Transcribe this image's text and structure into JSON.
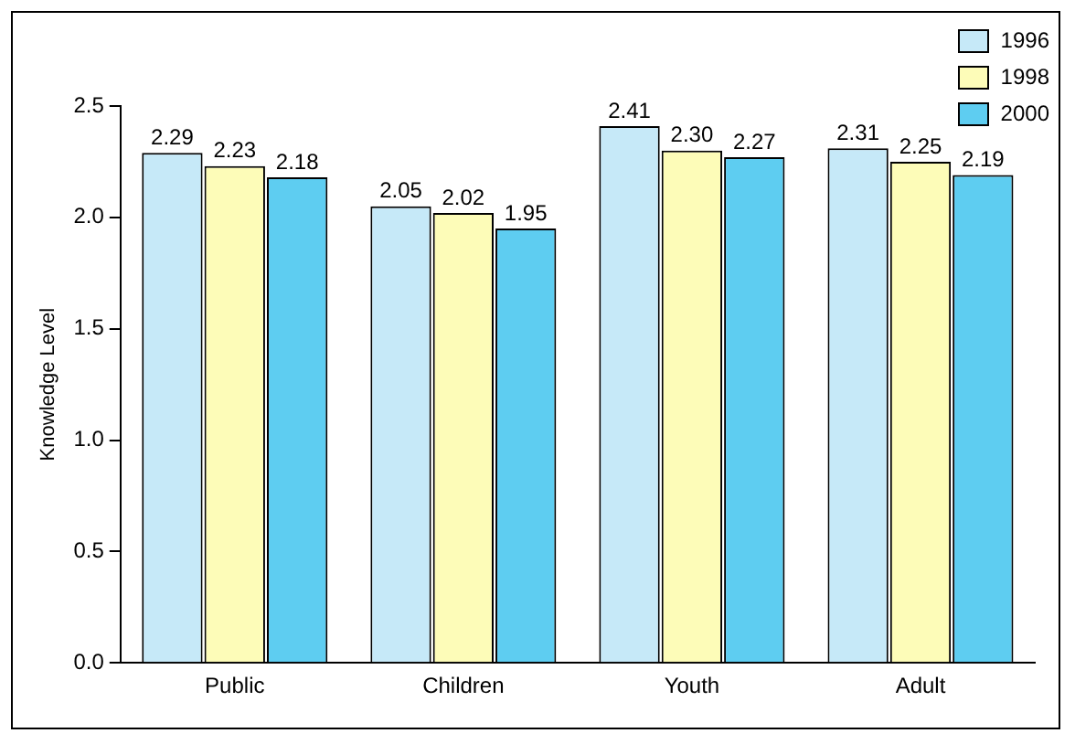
{
  "chart_data": {
    "type": "bar",
    "ylabel": "Knowledge Level",
    "categories": [
      "Public",
      "Children",
      "Youth",
      "Adult"
    ],
    "series": [
      {
        "name": "1996",
        "color": "#c6e9f8",
        "values": [
          2.29,
          2.05,
          2.41,
          2.31
        ],
        "value_labels": [
          "2.29",
          "2.05",
          "2.41",
          "2.31"
        ]
      },
      {
        "name": "1998",
        "color": "#fdfcb8",
        "values": [
          2.23,
          2.02,
          2.3,
          2.25
        ],
        "value_labels": [
          "2.23",
          "2.02",
          "2.30",
          "2.25"
        ]
      },
      {
        "name": "2000",
        "color": "#5ecdf1",
        "values": [
          2.18,
          1.95,
          2.27,
          2.19
        ],
        "value_labels": [
          "2.18",
          "1.95",
          "2.27",
          "2.19"
        ]
      }
    ],
    "ylim": [
      0,
      2.5
    ],
    "yticks": [
      {
        "value": 0,
        "label": "0.0"
      },
      {
        "value": 0.5,
        "label": "0.5"
      },
      {
        "value": 1,
        "label": "1.0"
      },
      {
        "value": 1.5,
        "label": "1.5"
      },
      {
        "value": 2,
        "label": "2.0"
      },
      {
        "value": 2.5,
        "label": "2.5"
      }
    ],
    "grid": false,
    "legend": "top right"
  }
}
